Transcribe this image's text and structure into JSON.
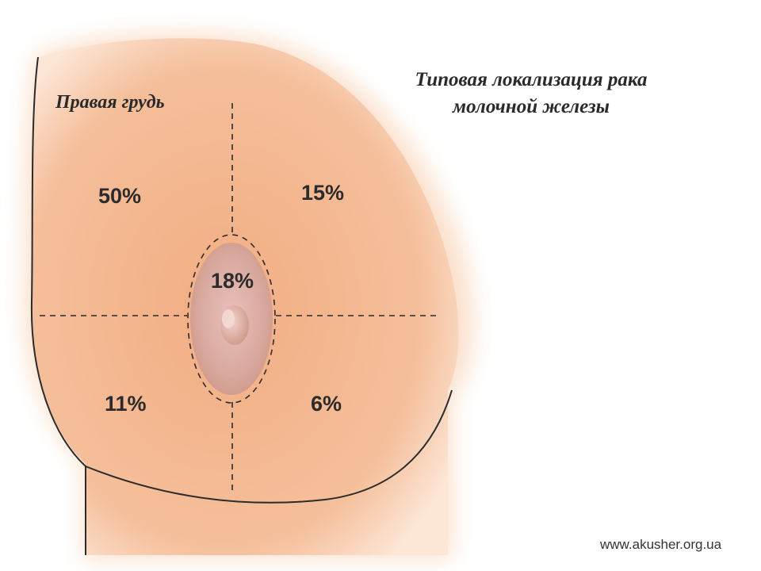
{
  "title": {
    "line1": "Типовая локализация рака",
    "line2": "молочной железы"
  },
  "side_label": "Правая грудь",
  "regions": {
    "upper_outer": "50%",
    "upper_inner": "15%",
    "central": "18%",
    "lower_outer": "11%",
    "lower_inner": "6%"
  },
  "watermark": "www.akusher.org.ua",
  "colors": {
    "skin": "#f2b48c",
    "skin_light": "#fbe2d0",
    "areola": "#d9a79d",
    "outline": "#2b2b2b"
  }
}
